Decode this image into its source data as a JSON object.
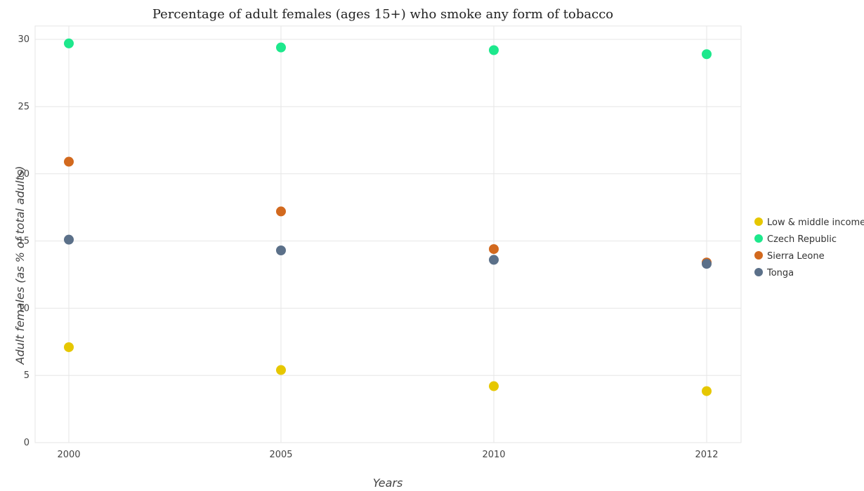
{
  "chart_data": {
    "type": "scatter",
    "title": "Percentage of adult females (ages 15+) who smoke any form of tobacco",
    "xlabel": "Years",
    "ylabel": "Adult females (as % of total adults)",
    "categories": [
      "2000",
      "2005",
      "2010",
      "2012"
    ],
    "ylim": [
      0,
      31
    ],
    "yticks": [
      0,
      5,
      10,
      15,
      20,
      25,
      30
    ],
    "grid": true,
    "legend_position": "right",
    "series": [
      {
        "name": "Low & middle income",
        "color": "#e6c700",
        "values": [
          7.1,
          5.4,
          4.2,
          3.83
        ]
      },
      {
        "name": "Czech Republic",
        "color": "#1de88c",
        "values": [
          29.7,
          29.4,
          29.2,
          28.9
        ]
      },
      {
        "name": "Sierra Leone",
        "color": "#d2691e",
        "values": [
          20.9,
          17.2,
          14.4,
          13.4
        ]
      },
      {
        "name": "Tonga",
        "color": "#5b7089",
        "values": [
          15.1,
          14.3,
          13.6,
          13.3
        ]
      }
    ]
  }
}
